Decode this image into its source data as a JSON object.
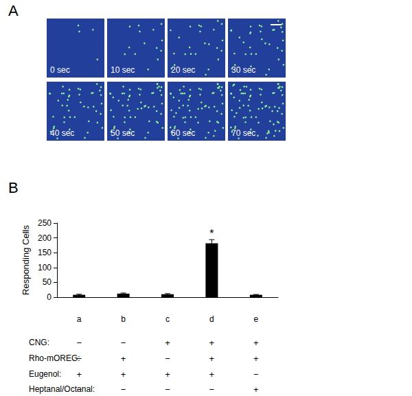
{
  "panel_labels": [
    "A",
    "B"
  ],
  "images": {
    "times": [
      "0 sec",
      "10 sec",
      "20 sec",
      "30 sec",
      "40 sec",
      "50 sec",
      "60 sec",
      "70 sec"
    ]
  },
  "chart_data": {
    "type": "bar",
    "ylabel": "Responding Cells",
    "categories": [
      "a",
      "b",
      "c",
      "d",
      "e"
    ],
    "values": [
      8,
      12,
      10,
      182,
      8
    ],
    "errors": [
      2,
      2,
      2,
      12,
      1
    ],
    "color": "#000000",
    "ylim": [
      0,
      250
    ],
    "yticks": [
      0,
      50,
      100,
      150,
      200,
      250
    ],
    "grid": false,
    "annotations": [
      {
        "category": "d",
        "text": "*"
      }
    ],
    "conditions": [
      {
        "label": "CNG:",
        "values": [
          "−",
          "−",
          "+",
          "+",
          "+"
        ]
      },
      {
        "label": "Rho-mOREG:",
        "values": [
          "−",
          "+",
          "−",
          "+",
          "+"
        ]
      },
      {
        "label": "Eugenol:",
        "values": [
          "+",
          "+",
          "+",
          "+",
          "−"
        ]
      },
      {
        "label": "Heptanal/Octanal:",
        "values": [
          "−",
          "−",
          "−",
          "−",
          "+"
        ]
      }
    ]
  }
}
